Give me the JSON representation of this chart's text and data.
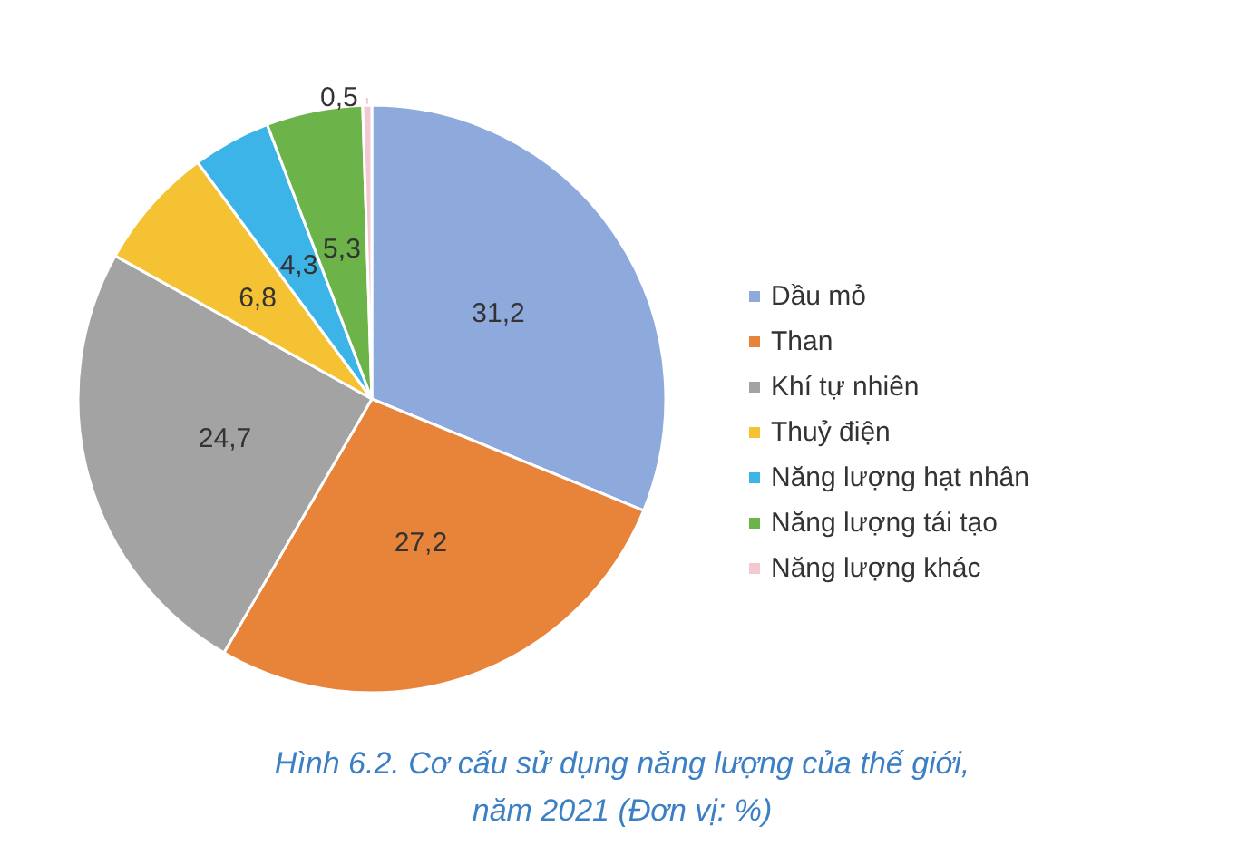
{
  "chart_data": {
    "type": "pie",
    "title": "Hình 6.2. Cơ cấu sử dụng năng lượng của thế giới,\nnăm 2021 (Đơn vị: %)",
    "categories": [
      "Dầu mỏ",
      "Than",
      "Khí tự nhiên",
      "Thuỷ điện",
      "Năng lượng hạt nhân",
      "Năng lượng tái tạo",
      "Năng lượng khác"
    ],
    "values": [
      31.2,
      27.2,
      24.7,
      6.8,
      4.3,
      5.3,
      0.5
    ],
    "colors": [
      "#8eaadc",
      "#e8833a",
      "#a3a3a3",
      "#f4c232",
      "#3db4e8",
      "#6cb44a",
      "#f2c9d3"
    ],
    "value_labels": [
      "31,2",
      "27,2",
      "24,7",
      "6,8",
      "4,3",
      "5,3",
      "0,5"
    ],
    "legend": "right"
  }
}
